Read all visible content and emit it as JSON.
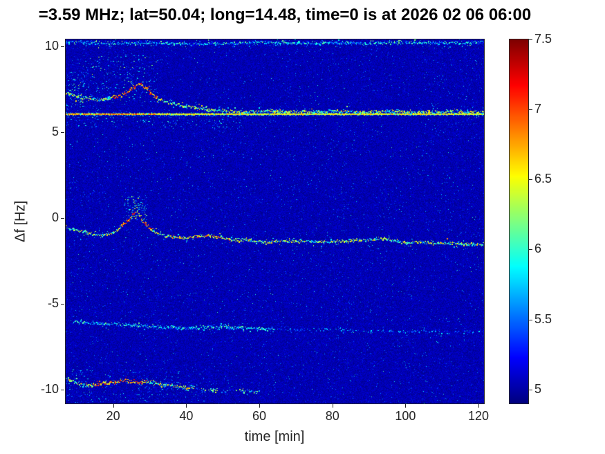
{
  "title": "=3.59 MHz;  lat=50.04; long=14.48, time=0 is at 2026 02 06 06:00",
  "chart_data": {
    "type": "heatmap",
    "title": "=3.59 MHz;  lat=50.04; long=14.48, time=0 is at 2026 02 06 06:00",
    "xlabel": "time [min]",
    "ylabel": "Δf [Hz]",
    "xlim": [
      7,
      121.5
    ],
    "ylim": [
      -10.8,
      10.4
    ],
    "x_ticks": [
      20,
      40,
      60,
      80,
      100,
      120
    ],
    "y_ticks": [
      10,
      5,
      0,
      -5,
      -10
    ],
    "colormap": "jet",
    "value_range": [
      4.9,
      7.5
    ],
    "colorbar_ticks": [
      7.5,
      7,
      6.5,
      6,
      5.5,
      5
    ],
    "background_value": 5.0,
    "legend": "none",
    "grid": false,
    "traces": [
      {
        "name": "carrier-line-6hz",
        "style": "line",
        "value": 6.5,
        "jitter": 0.05,
        "value_jitter": 0.3,
        "hot": [
          [
            7,
            32,
            6.85
          ]
        ],
        "points": [
          [
            7,
            6.05
          ],
          [
            121.5,
            6.05
          ]
        ]
      },
      {
        "name": "upper-descending-trace",
        "style": "speckle",
        "value": 6.15,
        "jitter": 0.12,
        "value_jitter": 0.55,
        "hot": [
          [
            20,
            32,
            6.9
          ]
        ],
        "points": [
          [
            7,
            7.35
          ],
          [
            10,
            7.1
          ],
          [
            13,
            6.95
          ],
          [
            16,
            6.9
          ],
          [
            19,
            7.0
          ],
          [
            22,
            7.2
          ],
          [
            25,
            7.55
          ],
          [
            27,
            7.85
          ],
          [
            29,
            7.6
          ],
          [
            31,
            7.15
          ],
          [
            33,
            6.9
          ],
          [
            36,
            6.7
          ],
          [
            39,
            6.55
          ],
          [
            42,
            6.45
          ],
          [
            46,
            6.35
          ],
          [
            50,
            6.28
          ],
          [
            56,
            6.22
          ],
          [
            64,
            6.25
          ],
          [
            72,
            6.2
          ],
          [
            80,
            6.24
          ],
          [
            88,
            6.2
          ],
          [
            96,
            6.23
          ],
          [
            104,
            6.2
          ],
          [
            112,
            6.23
          ],
          [
            121.5,
            6.2
          ]
        ]
      },
      {
        "name": "center-doppler-trace",
        "style": "speckle",
        "value": 6.15,
        "jitter": 0.1,
        "value_jitter": 0.55,
        "hot": [
          [
            22,
            30,
            6.8
          ],
          [
            36,
            52,
            6.5
          ]
        ],
        "points": [
          [
            7,
            -0.55
          ],
          [
            10,
            -0.7
          ],
          [
            13,
            -0.85
          ],
          [
            16,
            -0.95
          ],
          [
            19,
            -0.9
          ],
          [
            21,
            -0.7
          ],
          [
            23,
            -0.3
          ],
          [
            25,
            0.1
          ],
          [
            26,
            0.45
          ],
          [
            27,
            0.25
          ],
          [
            28,
            -0.2
          ],
          [
            30,
            -0.6
          ],
          [
            32,
            -0.85
          ],
          [
            34,
            -1.0
          ],
          [
            37,
            -1.1
          ],
          [
            40,
            -1.15
          ],
          [
            43,
            -1.05
          ],
          [
            46,
            -0.95
          ],
          [
            49,
            -1.1
          ],
          [
            52,
            -1.25
          ],
          [
            55,
            -1.2
          ],
          [
            58,
            -1.3
          ],
          [
            61,
            -1.4
          ],
          [
            64,
            -1.35
          ],
          [
            67,
            -1.3
          ],
          [
            70,
            -1.35
          ],
          [
            74,
            -1.3
          ],
          [
            78,
            -1.38
          ],
          [
            82,
            -1.32
          ],
          [
            86,
            -1.28
          ],
          [
            90,
            -1.25
          ],
          [
            94,
            -1.18
          ],
          [
            97,
            -1.3
          ],
          [
            100,
            -1.42
          ],
          [
            104,
            -1.38
          ],
          [
            108,
            -1.45
          ],
          [
            112,
            -1.42
          ],
          [
            116,
            -1.5
          ],
          [
            121.5,
            -1.48
          ]
        ]
      },
      {
        "name": "faint-trace-minus6hz",
        "style": "speckle",
        "value": 5.75,
        "jitter": 0.12,
        "value_jitter": 0.45,
        "fade_after": 64,
        "points": [
          [
            9,
            -6.0
          ],
          [
            14,
            -6.1
          ],
          [
            19,
            -6.15
          ],
          [
            24,
            -6.2
          ],
          [
            29,
            -6.3
          ],
          [
            34,
            -6.35
          ],
          [
            39,
            -6.4
          ],
          [
            44,
            -6.35
          ],
          [
            49,
            -6.3
          ],
          [
            54,
            -6.35
          ],
          [
            59,
            -6.4
          ],
          [
            66,
            -6.45
          ],
          [
            74,
            -6.5
          ],
          [
            82,
            -6.5
          ],
          [
            90,
            -6.55
          ],
          [
            100,
            -6.55
          ],
          [
            110,
            -6.6
          ],
          [
            121.5,
            -6.6
          ]
        ]
      },
      {
        "name": "bottom-trace-minus10hz",
        "style": "speckle",
        "value": 6.2,
        "jitter": 0.12,
        "value_jitter": 0.6,
        "hot": [
          [
            14,
            29,
            6.8
          ]
        ],
        "fade_after": 42,
        "points": [
          [
            7,
            -9.35
          ],
          [
            9,
            -9.5
          ],
          [
            11,
            -9.65
          ],
          [
            13,
            -9.75
          ],
          [
            15,
            -9.7
          ],
          [
            17,
            -9.6
          ],
          [
            19,
            -9.55
          ],
          [
            21,
            -9.5
          ],
          [
            23,
            -9.45
          ],
          [
            25,
            -9.5
          ],
          [
            27,
            -9.55
          ],
          [
            29,
            -9.5
          ],
          [
            31,
            -9.55
          ],
          [
            33,
            -9.65
          ],
          [
            35,
            -9.7
          ],
          [
            38,
            -9.8
          ],
          [
            41,
            -9.85
          ],
          [
            44,
            -9.9
          ],
          [
            47,
            -10.0
          ],
          [
            50,
            -10.05
          ],
          [
            53,
            -10.0
          ],
          [
            56,
            -10.05
          ],
          [
            60,
            -10.1
          ]
        ]
      },
      {
        "name": "top-edge-noise-trace",
        "style": "speckle",
        "value": 5.7,
        "jitter": 0.1,
        "value_jitter": 0.5,
        "points": [
          [
            7,
            10.25
          ],
          [
            20,
            10.2
          ],
          [
            30,
            10.25
          ],
          [
            40,
            10.15
          ],
          [
            50,
            10.2
          ],
          [
            60,
            10.25
          ],
          [
            70,
            10.2
          ],
          [
            80,
            10.25
          ],
          [
            90,
            10.2
          ],
          [
            100,
            10.25
          ],
          [
            110,
            10.2
          ],
          [
            121.5,
            10.25
          ]
        ]
      }
    ],
    "noise_clusters": [
      {
        "name": "upper-left-speckle-cloud",
        "t": [
          10,
          32
        ],
        "df": [
          6.8,
          9.5
        ],
        "count": 230,
        "value": [
          5.3,
          6.4
        ]
      },
      {
        "name": "center-bump-speckles",
        "t": [
          23,
          29
        ],
        "df": [
          -0.2,
          1.3
        ],
        "count": 120,
        "value": [
          5.4,
          6.5
        ]
      },
      {
        "name": "left-edge-speckles",
        "t": [
          7,
          12
        ],
        "df": [
          6.5,
          8.5
        ],
        "count": 90,
        "value": [
          5.3,
          6.2
        ]
      },
      {
        "name": "bottom-left-speckles",
        "t": [
          7,
          45
        ],
        "df": [
          -10.7,
          -8.8
        ],
        "count": 260,
        "value": [
          5.2,
          6.0
        ]
      },
      {
        "name": "below-carrier-speckles",
        "t": [
          7,
          55
        ],
        "df": [
          5.3,
          6.0
        ],
        "count": 140,
        "value": [
          5.3,
          6.1
        ]
      }
    ]
  }
}
